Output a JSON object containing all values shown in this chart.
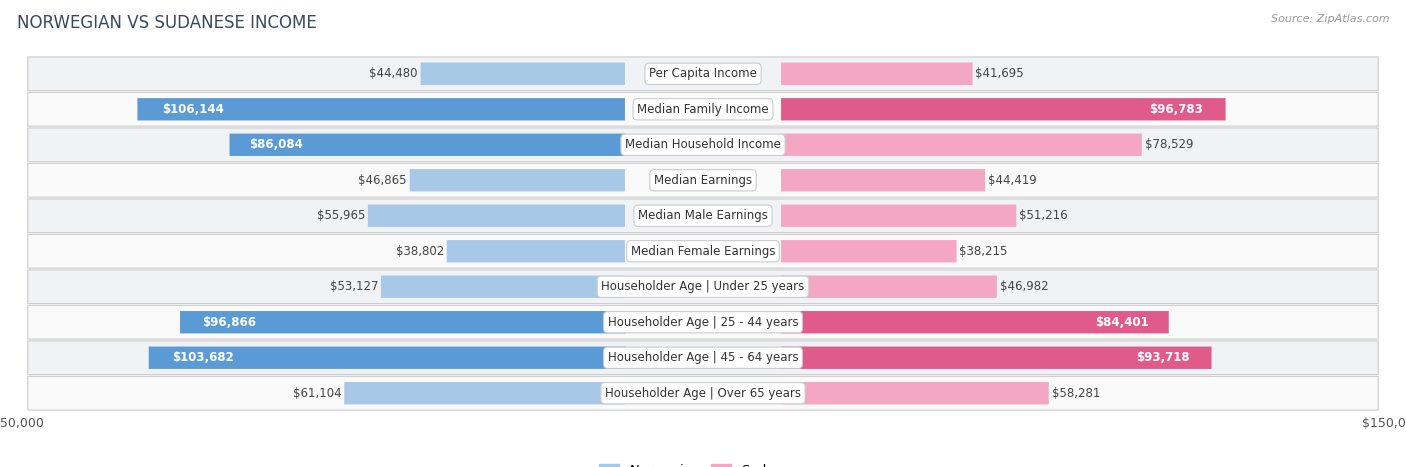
{
  "title": "NORWEGIAN VS SUDANESE INCOME",
  "source": "Source: ZipAtlas.com",
  "categories": [
    "Per Capita Income",
    "Median Family Income",
    "Median Household Income",
    "Median Earnings",
    "Median Male Earnings",
    "Median Female Earnings",
    "Householder Age | Under 25 years",
    "Householder Age | 25 - 44 years",
    "Householder Age | 45 - 64 years",
    "Householder Age | Over 65 years"
  ],
  "norwegian": [
    44480,
    106144,
    86084,
    46865,
    55965,
    38802,
    53127,
    96866,
    103682,
    61104
  ],
  "sudanese": [
    41695,
    96783,
    78529,
    44419,
    51216,
    38215,
    46982,
    84401,
    93718,
    58281
  ],
  "max_val": 150000,
  "norwegian_color": "#a8c8e8",
  "norwegian_color_bold": "#5b9bd5",
  "sudanese_color": "#f4a7c3",
  "sudanese_color_bold": "#e05a8a",
  "row_bg_even": "#f0f2f5",
  "row_bg_odd": "#fafafa",
  "bold_threshold": 80000,
  "bar_height": 0.62,
  "label_fontsize": 8.5,
  "val_fontsize": 8.5,
  "figsize": [
    14.06,
    4.67
  ],
  "dpi": 100,
  "title_color": "#3a4a5c",
  "val_color": "#444444",
  "source_color": "#999999"
}
